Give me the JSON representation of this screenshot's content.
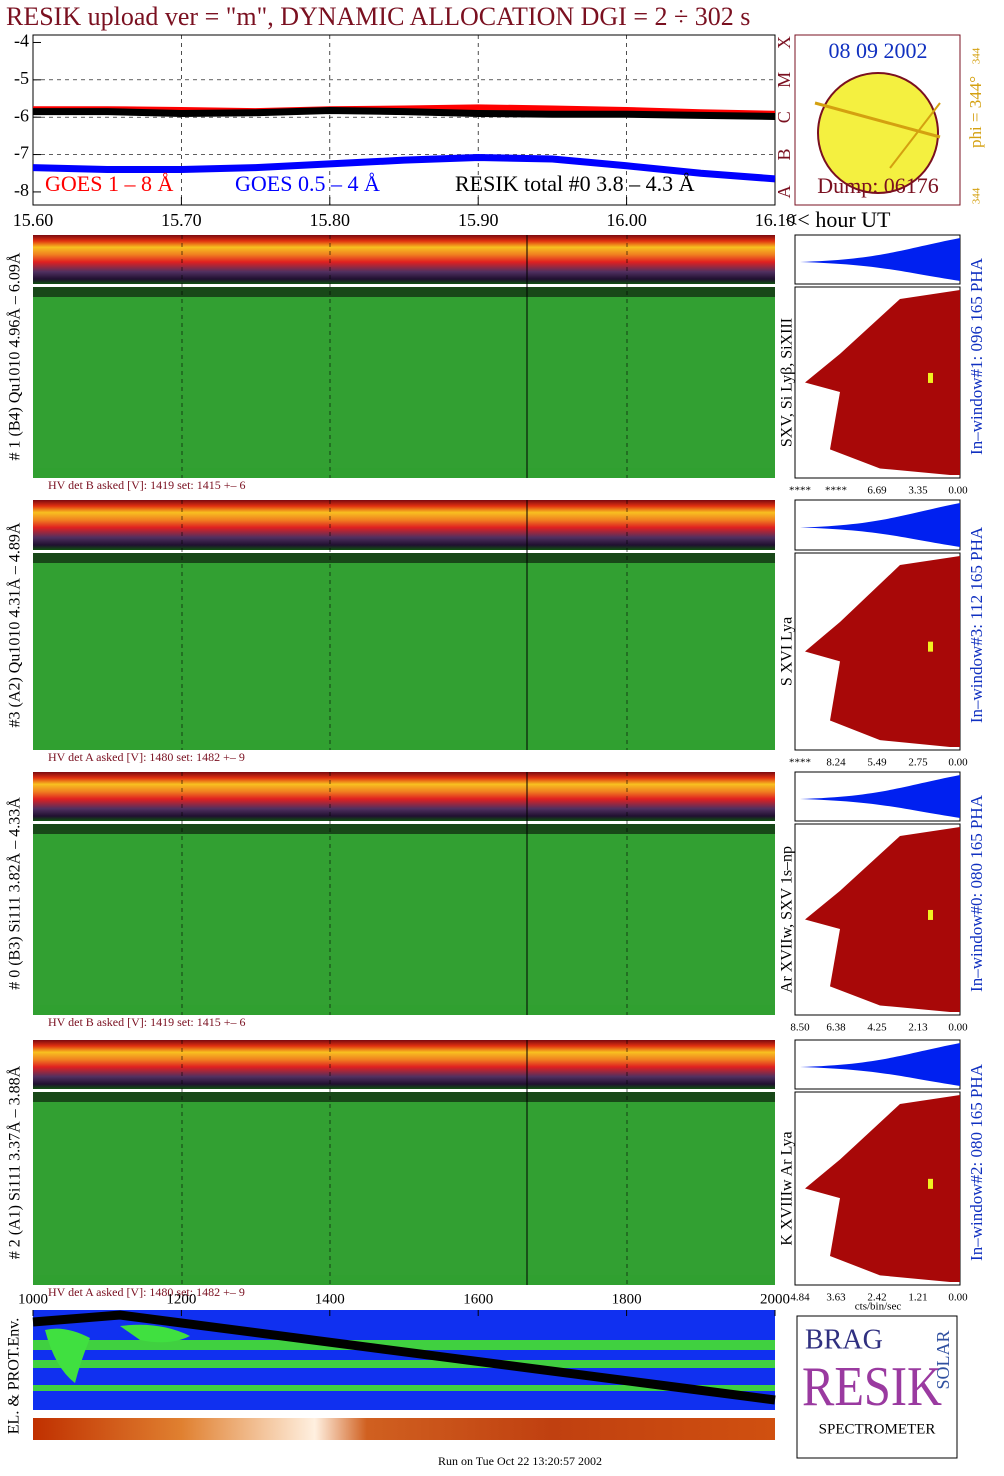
{
  "header": {
    "title": "RESIK upload ver = \"m\", DYNAMIC ALLOCATION  DGI =   2 ÷ 302 s"
  },
  "chart_data": {
    "type": "line",
    "x": [
      15.6,
      15.65,
      15.7,
      15.75,
      15.8,
      15.85,
      15.9,
      15.95,
      16.0,
      16.05,
      16.1
    ],
    "series": [
      {
        "name": "GOES 1 – 8 Å",
        "color": "#ff0000",
        "values": [
          -5.8,
          -5.8,
          -5.82,
          -5.85,
          -5.8,
          -5.78,
          -5.75,
          -5.78,
          -5.82,
          -5.88,
          -5.92
        ]
      },
      {
        "name": "GOES 0.5 – 4 Å",
        "color": "#0000ff",
        "values": [
          -7.35,
          -7.4,
          -7.4,
          -7.35,
          -7.25,
          -7.15,
          -7.08,
          -7.12,
          -7.3,
          -7.5,
          -7.65
        ]
      },
      {
        "name": "RESIK total #0  3.8 – 4.3 Å",
        "color": "#000000",
        "values": [
          -5.85,
          -5.85,
          -5.9,
          -5.88,
          -5.82,
          -5.85,
          -5.9,
          -5.92,
          -5.92,
          -5.95,
          -5.98
        ]
      }
    ],
    "xlim": [
      15.6,
      16.1
    ],
    "xticks": [
      {
        "value": 15.6,
        "label": "15.60"
      },
      {
        "value": 15.7,
        "label": "15.70"
      },
      {
        "value": 15.8,
        "label": "15.80"
      },
      {
        "value": 15.9,
        "label": "15.90"
      },
      {
        "value": 16.0,
        "label": "16.00"
      },
      {
        "value": 16.1,
        "label": "16.10"
      }
    ],
    "xlabel": "<< hour UT",
    "ylim": [
      -8.35,
      -3.8
    ],
    "yticks": [
      -4,
      -5,
      -6,
      -7,
      -8
    ],
    "class_labels": [
      "X",
      "M",
      "C",
      "B",
      "A"
    ],
    "grid": true
  },
  "sun": {
    "date": "08 09 2002",
    "dump": "Dump: 06176",
    "phi": "phi = 344°",
    "phi_small": "344",
    "phi_corner": "344"
  },
  "panels": [
    {
      "label": "# 1 (B4) Qu1010 4.96Å – 6.09Å",
      "lines": "SXV, Si Lyβ, SiXIII",
      "window": "In–window#1:  096 165 PHA",
      "hv": "HV det B asked [V]:  1419 set:  1415 +–    6",
      "hist_ticks": [
        "****",
        "****",
        "6.69",
        "3.35",
        "0.00"
      ]
    },
    {
      "label": "#3 (A2) Qu1010  4.31Å – 4.89Å",
      "lines": "S XVI Lya",
      "window": "In–window#3:  112 165 PHA",
      "hv": "HV det A asked [V]:  1480 set:  1482 +–    9",
      "hist_ticks": [
        "****",
        "8.24",
        "5.49",
        "2.75",
        "0.00"
      ]
    },
    {
      "label": "# 0 (B3) Si111  3.82Å – 4.33Å",
      "lines": "Ar XVIIw,  SXV 1s–np",
      "window": "In–window#0:  080 165 PHA",
      "hv": "HV det B asked [V]:  1419 set:  1415 +–    6",
      "hist_ticks": [
        "8.50",
        "6.38",
        "4.25",
        "2.13",
        "0.00"
      ]
    },
    {
      "label": "# 2 (A1) Si111  3.37Å – 3.88Å",
      "lines": "K XVIIIw  Ar Lya",
      "window": "In–window#2:  080 165 PHA",
      "hv": "HV det A asked [V]:  1480 set:  1482 +–    9",
      "hist_ticks": [
        "4.84",
        "3.63",
        "2.42",
        "1.21",
        "0.00"
      ]
    }
  ],
  "hist_unit": "cts/bin/sec",
  "orbit_axis": {
    "xlim": [
      1000,
      2000
    ],
    "xticks": [
      1000,
      1200,
      1400,
      1600,
      1800,
      2000
    ]
  },
  "env_label": "EL. & PROT.Env.",
  "logo": {
    "main": "RESIK",
    "top": "BRAG",
    "side": "SOLAR",
    "bottom": "SPECTROMETER"
  },
  "footer": "Run on Tue Oct 22 13:20:57 2002"
}
